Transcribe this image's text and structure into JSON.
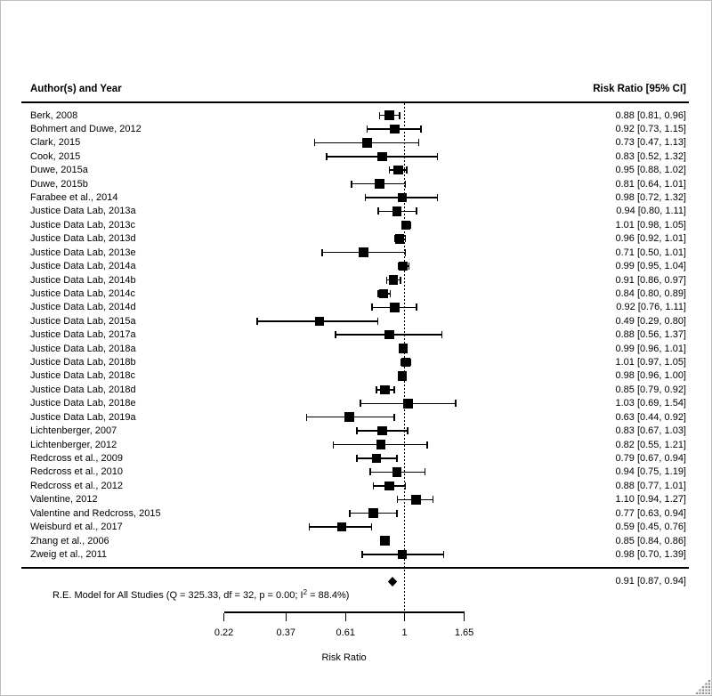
{
  "window": {
    "colors": {
      "marker": "#000000",
      "text": "#000000",
      "border": "#bdbdbd",
      "grip_dot": "#8f8f8f",
      "grip_bg": "#f0f0f0"
    }
  },
  "header": {
    "left": "Author(s) and Year",
    "right": "Risk Ratio [95% CI]"
  },
  "summary": {
    "label_prefix": "R.E. Model for All Studies (Q = 325.33, df = 32, p = 0.00; I",
    "label_sup": "2",
    "label_suffix": " = 88.4%)",
    "value": "0.91 [0.87, 0.94]",
    "est": 0.91,
    "lo": 0.87,
    "hi": 0.94
  },
  "axis": {
    "label": "Risk Ratio",
    "tick_labels": [
      "0.22",
      "0.37",
      "0.61",
      "1",
      "1.65"
    ],
    "ticks": [
      0.22,
      0.37,
      0.61,
      1,
      1.65
    ],
    "reference_line": 1,
    "scale": "log"
  },
  "chart_data": {
    "type": "scatter",
    "subtype": "forest-plot",
    "xlabel": "Risk Ratio",
    "x_scale": "log",
    "x_ticks": [
      0.22,
      0.37,
      0.61,
      1,
      1.65
    ],
    "xlim": [
      0.22,
      1.65
    ],
    "reference_line": 1,
    "studies": [
      {
        "label": "Berk, 2008",
        "est": 0.88,
        "lo": 0.81,
        "hi": 0.96,
        "text": "0.88 [0.81, 0.96]"
      },
      {
        "label": "Bohmert and Duwe, 2012",
        "est": 0.92,
        "lo": 0.73,
        "hi": 1.15,
        "text": "0.92 [0.73, 1.15]"
      },
      {
        "label": "Clark, 2015",
        "est": 0.73,
        "lo": 0.47,
        "hi": 1.13,
        "text": "0.73 [0.47, 1.13]"
      },
      {
        "label": "Cook, 2015",
        "est": 0.83,
        "lo": 0.52,
        "hi": 1.32,
        "text": "0.83 [0.52, 1.32]"
      },
      {
        "label": "Duwe, 2015a",
        "est": 0.95,
        "lo": 0.88,
        "hi": 1.02,
        "text": "0.95 [0.88, 1.02]"
      },
      {
        "label": "Duwe, 2015b",
        "est": 0.81,
        "lo": 0.64,
        "hi": 1.01,
        "text": "0.81 [0.64, 1.01]"
      },
      {
        "label": "Farabee et al., 2014",
        "est": 0.98,
        "lo": 0.72,
        "hi": 1.32,
        "text": "0.98 [0.72, 1.32]"
      },
      {
        "label": "Justice Data Lab, 2013a",
        "est": 0.94,
        "lo": 0.8,
        "hi": 1.11,
        "text": "0.94 [0.80, 1.11]"
      },
      {
        "label": "Justice Data Lab, 2013c",
        "est": 1.01,
        "lo": 0.98,
        "hi": 1.05,
        "text": "1.01 [0.98, 1.05]"
      },
      {
        "label": "Justice Data Lab, 2013d",
        "est": 0.96,
        "lo": 0.92,
        "hi": 1.01,
        "text": "0.96 [0.92, 1.01]"
      },
      {
        "label": "Justice Data Lab, 2013e",
        "est": 0.71,
        "lo": 0.5,
        "hi": 1.01,
        "text": "0.71 [0.50, 1.01]"
      },
      {
        "label": "Justice Data Lab, 2014a",
        "est": 0.99,
        "lo": 0.95,
        "hi": 1.04,
        "text": "0.99 [0.95, 1.04]"
      },
      {
        "label": "Justice Data Lab, 2014b",
        "est": 0.91,
        "lo": 0.86,
        "hi": 0.97,
        "text": "0.91 [0.86, 0.97]"
      },
      {
        "label": "Justice Data Lab, 2014c",
        "est": 0.84,
        "lo": 0.8,
        "hi": 0.89,
        "text": "0.84 [0.80, 0.89]"
      },
      {
        "label": "Justice Data Lab, 2014d",
        "est": 0.92,
        "lo": 0.76,
        "hi": 1.11,
        "text": "0.92 [0.76, 1.11]"
      },
      {
        "label": "Justice Data Lab, 2015a",
        "est": 0.49,
        "lo": 0.29,
        "hi": 0.8,
        "text": "0.49 [0.29, 0.80]"
      },
      {
        "label": "Justice Data Lab, 2017a",
        "est": 0.88,
        "lo": 0.56,
        "hi": 1.37,
        "text": "0.88 [0.56, 1.37]"
      },
      {
        "label": "Justice Data Lab, 2018a",
        "est": 0.99,
        "lo": 0.96,
        "hi": 1.01,
        "text": "0.99 [0.96, 1.01]"
      },
      {
        "label": "Justice Data Lab, 2018b",
        "est": 1.01,
        "lo": 0.97,
        "hi": 1.05,
        "text": "1.01 [0.97, 1.05]"
      },
      {
        "label": "Justice Data Lab, 2018c",
        "est": 0.98,
        "lo": 0.96,
        "hi": 1.0,
        "text": "0.98 [0.96, 1.00]"
      },
      {
        "label": "Justice Data Lab, 2018d",
        "est": 0.85,
        "lo": 0.79,
        "hi": 0.92,
        "text": "0.85 [0.79, 0.92]"
      },
      {
        "label": "Justice Data Lab, 2018e",
        "est": 1.03,
        "lo": 0.69,
        "hi": 1.54,
        "text": "1.03 [0.69, 1.54]"
      },
      {
        "label": "Justice Data Lab, 2019a",
        "est": 0.63,
        "lo": 0.44,
        "hi": 0.92,
        "text": "0.63 [0.44, 0.92]"
      },
      {
        "label": "Lichtenberger, 2007",
        "est": 0.83,
        "lo": 0.67,
        "hi": 1.03,
        "text": "0.83 [0.67, 1.03]"
      },
      {
        "label": "Lichtenberger, 2012",
        "est": 0.82,
        "lo": 0.55,
        "hi": 1.21,
        "text": "0.82 [0.55, 1.21]"
      },
      {
        "label": "Redcross et al., 2009",
        "est": 0.79,
        "lo": 0.67,
        "hi": 0.94,
        "text": "0.79 [0.67, 0.94]"
      },
      {
        "label": "Redcross et al., 2010",
        "est": 0.94,
        "lo": 0.75,
        "hi": 1.19,
        "text": "0.94 [0.75, 1.19]"
      },
      {
        "label": "Redcross et al., 2012",
        "est": 0.88,
        "lo": 0.77,
        "hi": 1.01,
        "text": "0.88 [0.77, 1.01]"
      },
      {
        "label": "Valentine, 2012",
        "est": 1.1,
        "lo": 0.94,
        "hi": 1.27,
        "text": "1.10 [0.94, 1.27]"
      },
      {
        "label": "Valentine and Redcross, 2015",
        "est": 0.77,
        "lo": 0.63,
        "hi": 0.94,
        "text": "0.77 [0.63, 0.94]"
      },
      {
        "label": "Weisburd et al., 2017",
        "est": 0.59,
        "lo": 0.45,
        "hi": 0.76,
        "text": "0.59 [0.45, 0.76]"
      },
      {
        "label": "Zhang et al., 2006",
        "est": 0.85,
        "lo": 0.84,
        "hi": 0.86,
        "text": "0.85 [0.84, 0.86]"
      },
      {
        "label": "Zweig et al., 2011",
        "est": 0.98,
        "lo": 0.7,
        "hi": 1.39,
        "text": "0.98 [0.70, 1.39]"
      }
    ],
    "summary": {
      "label": "R.E. Model for All Studies (Q = 325.33, df = 32, p = 0.00; I2 = 88.4%)",
      "est": 0.91,
      "lo": 0.87,
      "hi": 0.94,
      "text": "0.91 [0.87, 0.94]"
    }
  }
}
